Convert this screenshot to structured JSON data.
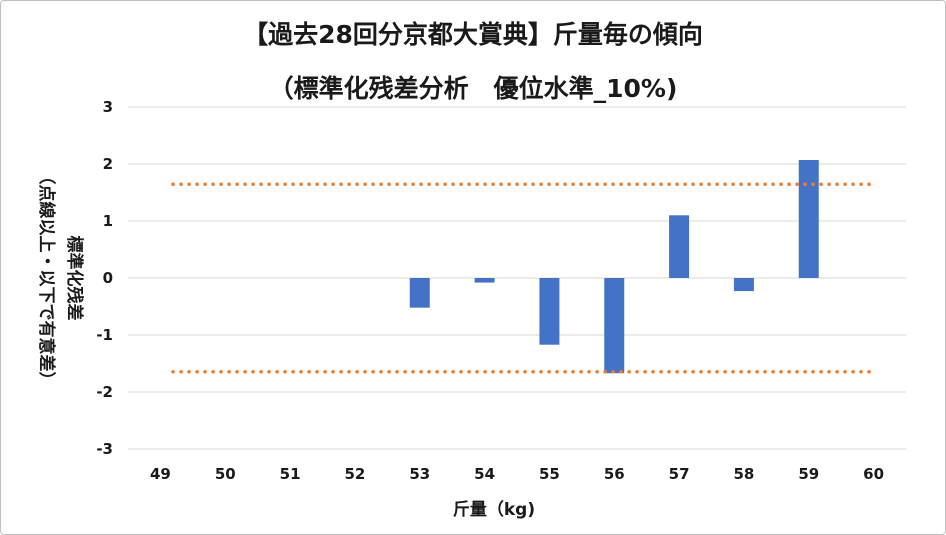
{
  "chart_data": {
    "type": "bar",
    "title": "【過去28回分京都大賞典】斤量毎の傾向",
    "subtitle": "（標準化残差分析　優位水準_10%)",
    "xlabel": "斤量（kg)",
    "ylabel": "標準化残差",
    "ylabel_note": "（点線以上・以下で有意差）",
    "categories": [
      "49",
      "50",
      "51",
      "52",
      "53",
      "54",
      "55",
      "56",
      "57",
      "58",
      "59",
      "60"
    ],
    "values": [
      null,
      null,
      null,
      null,
      -0.52,
      -0.08,
      -1.17,
      -1.67,
      1.1,
      -0.23,
      2.07,
      null
    ],
    "ylim": [
      -3,
      3
    ],
    "yticks": [
      "3",
      "2",
      "1",
      "0",
      "-1",
      "-2",
      "-3"
    ],
    "threshold_lines": [
      1.645,
      -1.645
    ],
    "grid": true,
    "legend": "none",
    "colors": {
      "bar": "#4472c4",
      "threshold": "#ed7d31",
      "grid": "#d9d9d9"
    }
  }
}
